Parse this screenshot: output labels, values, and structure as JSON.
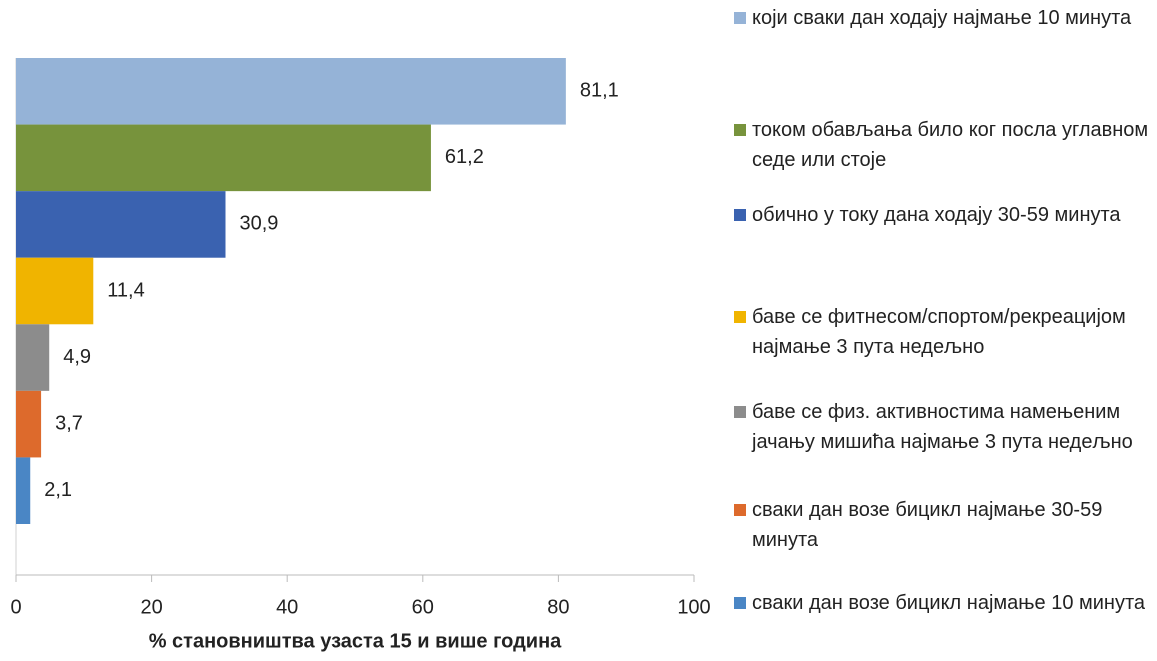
{
  "chart_data": {
    "type": "bar",
    "orientation": "horizontal",
    "categories": [
      "који сваки дан ходају најмање 10 минута",
      "током обављања било ког посла углавном седе или стоје",
      "обично у току дана ходају 30-59 минута",
      "баве се фитнесом/спортом/рекреацијом најмање 3 пута недељно",
      "баве се физ. активностима намењеним јачању мишића најмање 3 пута недељно",
      "сваки дан возе бицикл најмање 30-59 минута",
      "сваки дан возе бицикл најмање 10 минута"
    ],
    "values": [
      81.1,
      61.2,
      30.9,
      11.4,
      4.9,
      3.7,
      2.1
    ],
    "value_labels": [
      "81,1",
      "61,2",
      "30,9",
      "11,4",
      "4,9",
      "3,7",
      "2,1"
    ],
    "colors": [
      "#95b3d7",
      "#77933c",
      "#3a62b0",
      "#f0b400",
      "#8c8c8c",
      "#dd6a2c",
      "#4a86c5"
    ],
    "xlabel": "% становништва узаста 15 и више година",
    "xlim": [
      0,
      100
    ],
    "xticks": [
      0,
      20,
      40,
      60,
      80,
      100
    ],
    "grid": false,
    "legend": "right"
  }
}
